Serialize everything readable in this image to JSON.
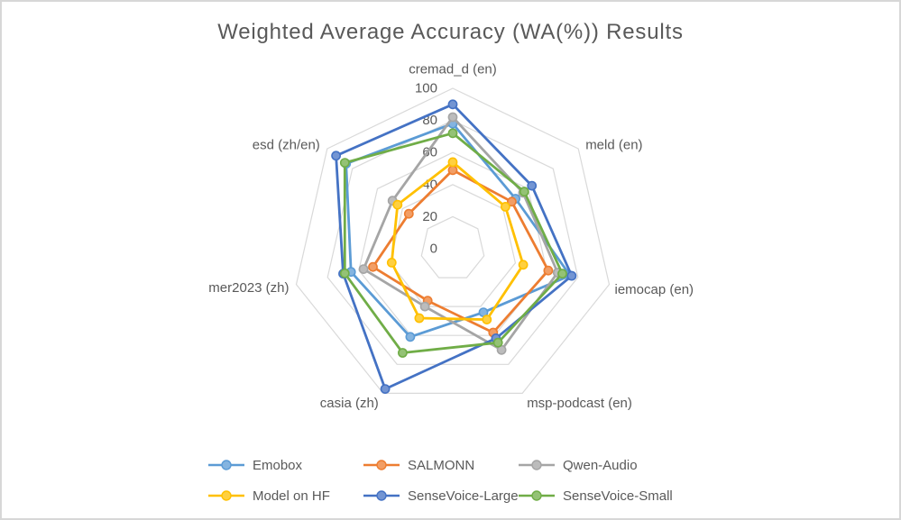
{
  "title": "Weighted Average Accuracy (WA(%)) Results",
  "chart_data": {
    "type": "radar",
    "categories": [
      "cremad_d (en)",
      "meld (en)",
      "iemocap (en)",
      "msp-podcast (en)",
      "casia (zh)",
      "mer2023 (zh)",
      "esd (zh/en)"
    ],
    "series": [
      {
        "name": "Emobox",
        "color": "#5B9BD5",
        "values": [
          78,
          50,
          75,
          44,
          61,
          65,
          85
        ]
      },
      {
        "name": "SALMONN",
        "color": "#ED7D31",
        "values": [
          49,
          47,
          61,
          58,
          36,
          51,
          35
        ]
      },
      {
        "name": "Qwen-Audio",
        "color": "#A5A5A5",
        "values": [
          82,
          56,
          67,
          70,
          40,
          57,
          48
        ]
      },
      {
        "name": "Model on HF",
        "color": "#FFC000",
        "values": [
          54,
          42,
          45,
          49,
          48,
          39,
          44
        ]
      },
      {
        "name": "SenseVoice-Large",
        "color": "#4472C4",
        "values": [
          90,
          63,
          76,
          62,
          97,
          70,
          93
        ]
      },
      {
        "name": "SenseVoice-Small",
        "color": "#70AD47",
        "values": [
          72,
          57,
          70,
          65,
          72,
          69,
          86
        ]
      }
    ],
    "axis": {
      "min": 0,
      "max": 100,
      "ticks": [
        0,
        20,
        40,
        60,
        80,
        100
      ],
      "grid": true,
      "gridline_color": "#D9D9D9",
      "tick_label_color": "#595959",
      "category_label_color": "#595959"
    },
    "legend_position": "bottom"
  },
  "window": {
    "background": "#FFFFFF",
    "border_color": "#D7D7D7",
    "title_color": "#595959"
  }
}
